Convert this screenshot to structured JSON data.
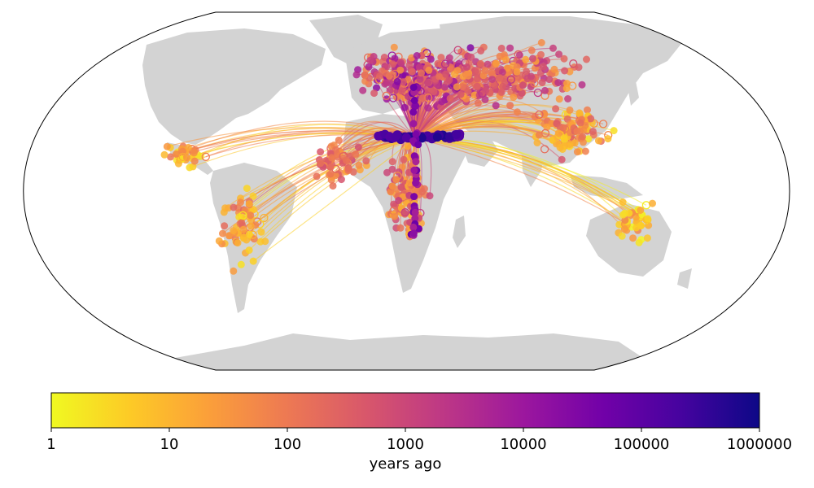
{
  "colorbar": {
    "label": "years ago",
    "scale": "log",
    "ticks": [
      "1",
      "10",
      "100",
      "1000",
      "10000",
      "100000",
      "1000000"
    ],
    "tick_values": [
      1,
      10,
      100,
      1000,
      10000,
      100000,
      1000000
    ],
    "colormap": "plasma_reversed",
    "stops": [
      "#f0f921",
      "#fdca26",
      "#fb9f3a",
      "#ed7953",
      "#d8576b",
      "#bd3786",
      "#9c179e",
      "#7201a8",
      "#46039f",
      "#0d0887"
    ]
  },
  "map": {
    "projection": "robinson",
    "land_color": "#d3d3d3",
    "border_color": "#000000"
  }
}
